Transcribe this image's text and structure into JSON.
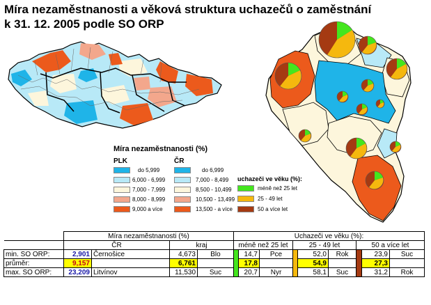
{
  "title": {
    "line1": "Míra nezaměstnanosti a věková struktura uchazečů o zaměstnání",
    "line2": "k 31. 12. 2005 podle SO ORP"
  },
  "colors": {
    "plk_1": "#1fb4e8",
    "plk_2": "#b8e9f7",
    "plk_3": "#fdf6dc",
    "plk_4": "#f3a78c",
    "plk_5": "#ec5a1c",
    "age_young": "#44e61e",
    "age_mid": "#f5b80e",
    "age_old": "#a53a12",
    "boundary": "#000000"
  },
  "legend": {
    "title": "Míra nezaměstnanosti (%)",
    "plk_label": "PLK",
    "cr_label": "ČR",
    "plk_classes": [
      "do 5,999",
      "6,000 - 6,999",
      "7,000 - 7,999",
      "8,000 - 8,999",
      "9,000 a více"
    ],
    "cr_classes": [
      "do 6,999",
      "7,000 - 8,499",
      "8,500 - 10,499",
      "10,500 - 13,499",
      "13,500 - a více"
    ],
    "age_title": "uchazeči ve věku (%):",
    "age_classes": [
      "méně než 25 let",
      "25 - 49 let",
      "50 a více let"
    ]
  },
  "table": {
    "header_rate": "Míra nezaměstnanosti (%)",
    "header_age": "Uchazeči ve věku (%):",
    "sub_cr": "ČR",
    "sub_kraj": "kraj",
    "sub_young": "méně než 25 let",
    "sub_mid": "25 - 49 let",
    "sub_old": "50 a více let",
    "rows": [
      {
        "label": "min. SO ORP:",
        "cr_val": "2,901",
        "cr_name": "Černošice",
        "kraj_val": "4,673",
        "kraj_name": "Blo",
        "young_val": "14,7",
        "young_name": "Pce",
        "mid_val": "52,0",
        "mid_name": "Rok",
        "old_val": "23,9",
        "old_name": "Suc"
      },
      {
        "label": "průměr:",
        "cr_val": "9,157",
        "cr_name": "",
        "kraj_val": "6,761",
        "kraj_name": "",
        "young_val": "17,8",
        "young_name": "",
        "mid_val": "54,9",
        "mid_name": "",
        "old_val": "27,3",
        "old_name": ""
      },
      {
        "label": "max. SO ORP:",
        "cr_val": "23,209",
        "cr_name": "Litvínov",
        "kraj_val": "11,530",
        "kraj_name": "Suc",
        "young_val": "20,7",
        "young_name": "Nyr",
        "mid_val": "58,1",
        "mid_name": "Suc",
        "old_val": "31,2",
        "old_name": "Rok"
      }
    ]
  }
}
